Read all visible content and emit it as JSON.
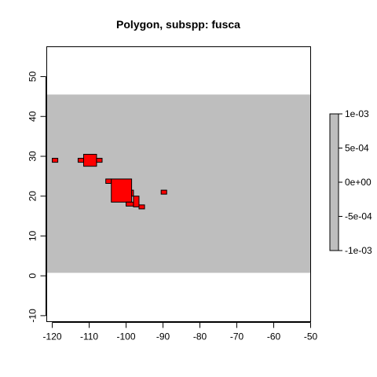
{
  "chart_data": {
    "type": "heatmap",
    "title": "Polygon, subspp: fusca",
    "xlabel": "",
    "ylabel": "",
    "xlim": [
      -121.5,
      -50
    ],
    "ylim": [
      -11.5,
      57.5
    ],
    "x_ticks": [
      -120,
      -110,
      -100,
      -90,
      -80,
      -70,
      -60,
      -50
    ],
    "y_ticks": [
      -10,
      0,
      10,
      20,
      30,
      40,
      50
    ],
    "raster": {
      "fill_color": "#BEBEBE",
      "extent": {
        "x": [
          -121.5,
          -50
        ],
        "y": [
          0.75,
          45.5
        ]
      },
      "value": 0
    },
    "polygon": {
      "fill_color": "#FF0000",
      "border_color": "#000000",
      "cells": [
        {
          "x": [
            -120,
            -118.5
          ],
          "y": [
            28.5,
            29.5
          ]
        },
        {
          "x": [
            -113,
            -111.5
          ],
          "y": [
            28.5,
            29.5
          ]
        },
        {
          "x": [
            -111.5,
            -108
          ],
          "y": [
            27.5,
            30.5
          ]
        },
        {
          "x": [
            -108,
            -106.5
          ],
          "y": [
            28.5,
            29.5
          ]
        },
        {
          "x": [
            -105.5,
            -104
          ],
          "y": [
            23.2,
            24.3
          ]
        },
        {
          "x": [
            -104,
            -98.5
          ],
          "y": [
            18.5,
            24.3
          ]
        },
        {
          "x": [
            -98.5,
            -98
          ],
          "y": [
            20,
            21.5
          ]
        },
        {
          "x": [
            -100,
            -98
          ],
          "y": [
            17.5,
            18.5
          ]
        },
        {
          "x": [
            -98,
            -96.5
          ],
          "y": [
            17.3,
            20
          ]
        },
        {
          "x": [
            -96.5,
            -95
          ],
          "y": [
            16.8,
            17.8
          ]
        },
        {
          "x": [
            -90.5,
            -89
          ],
          "y": [
            20.5,
            21.5
          ]
        }
      ]
    },
    "legend": {
      "type": "colorbar",
      "position": "right",
      "ticks": [
        "1e-03",
        "5e-04",
        "0e+00",
        "-5e-04",
        "-1e-03"
      ],
      "range": [
        -0.001,
        0.001
      ],
      "fill_color": "#BEBEBE"
    },
    "grid": false
  }
}
